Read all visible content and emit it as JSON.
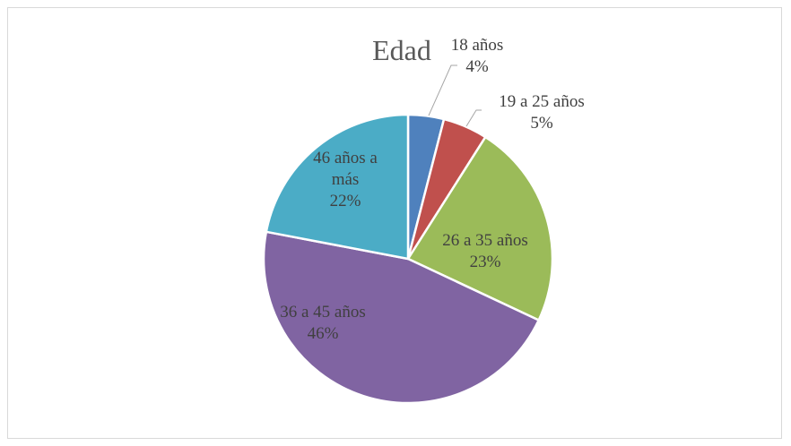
{
  "chart_data": {
    "type": "pie",
    "title": "Edad",
    "slices": [
      {
        "label_lines": [
          "18 años"
        ],
        "value": 4,
        "pct_label": "4%",
        "color": "#4F81BD"
      },
      {
        "label_lines": [
          "19 a 25 años"
        ],
        "value": 5,
        "pct_label": "5%",
        "color": "#C0504D"
      },
      {
        "label_lines": [
          "26 a 35 años"
        ],
        "value": 23,
        "pct_label": "23%",
        "color": "#9BBB59"
      },
      {
        "label_lines": [
          "36 a 45 años"
        ],
        "value": 46,
        "pct_label": "46%",
        "color": "#8064A2"
      },
      {
        "label_lines": [
          "46 años a",
          "más"
        ],
        "value": 22,
        "pct_label": "22%",
        "color": "#4BACC6"
      }
    ]
  }
}
